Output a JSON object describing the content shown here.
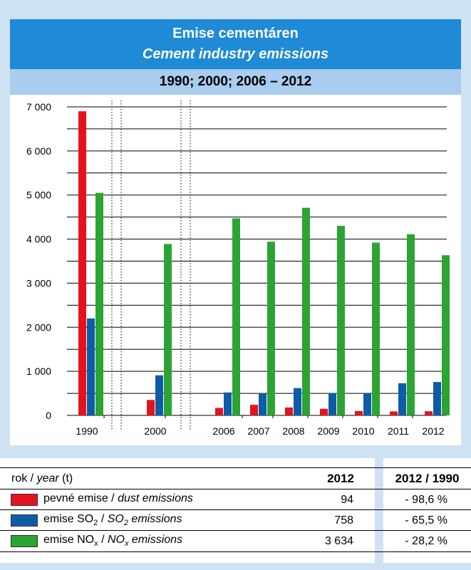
{
  "header": {
    "title": "Emise cementáren",
    "title_en": "Cement industry emissions",
    "subtitle": "1990; 2000; 2006 – 2012"
  },
  "colors": {
    "dust": "#e3141d",
    "so2": "#0d5ca8",
    "nox": "#2ba433",
    "header_blue": "#1f8ad6",
    "subheader_blue": "#a9cdee",
    "page_bg": "#cfe2f3"
  },
  "chart_data": {
    "type": "bar",
    "categories": [
      "1990",
      "2000",
      "2006",
      "2007",
      "2008",
      "2009",
      "2010",
      "2011",
      "2012"
    ],
    "series": [
      {
        "name": "pevné emise / dust emissions",
        "values": [
          6900,
          350,
          170,
          240,
          180,
          150,
          100,
          90,
          94
        ]
      },
      {
        "name": "emise SO2 / SO2 emissions",
        "values": [
          2200,
          910,
          520,
          500,
          620,
          510,
          500,
          730,
          758
        ]
      },
      {
        "name": "emise NOx / NOx emissions",
        "values": [
          5050,
          3890,
          4470,
          3940,
          4710,
          4300,
          3920,
          4110,
          3634
        ]
      }
    ],
    "ylim": [
      0,
      7000
    ],
    "yticks": [
      0,
      1000,
      2000,
      3000,
      4000,
      5000,
      6000,
      7000
    ],
    "ytick_labels": [
      "0",
      "1 000",
      "2 000",
      "3 000",
      "4 000",
      "5 000",
      "6 000",
      "7 000"
    ],
    "gridline_step": 500,
    "axis_breaks": [
      "between 1990 and 2000",
      "between 2000 and 2006"
    ],
    "xlabel": "",
    "ylabel": ""
  },
  "table": {
    "header": {
      "label_cz": "rok /",
      "label_en": "year",
      "unit": "(t)",
      "col_2012": "2012",
      "col_ratio": "2012 / 1990"
    },
    "rows": [
      {
        "label_cz": "pevné emise /",
        "label_en": "dust emissions",
        "value_2012": "94",
        "ratio": "- 98,6 %"
      },
      {
        "label_cz": "emise SO",
        "label_cz_sub": "2",
        "label_sep": " / ",
        "label_en": "SO",
        "label_en_sub": "2",
        "label_en_tail": " emissions",
        "value_2012": "758",
        "ratio": "- 65,5 %"
      },
      {
        "label_cz": "emise NO",
        "label_cz_sub": "x",
        "label_sep": " / ",
        "label_en": "NO",
        "label_en_sub": "x",
        "label_en_tail": " emissions",
        "value_2012": "3 634",
        "ratio": "- 28,2 %"
      }
    ]
  }
}
